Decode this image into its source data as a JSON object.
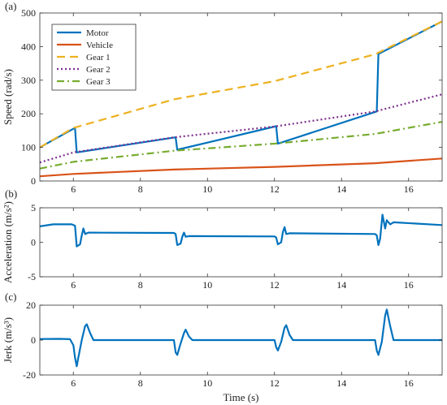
{
  "chart_data": [
    {
      "type": "line",
      "panel_label": "(a)",
      "xlabel": "",
      "ylabel": "Speed (rad/s)",
      "xlim": [
        5,
        17
      ],
      "ylim": [
        0,
        500
      ],
      "xticks": [
        6,
        8,
        10,
        12,
        14,
        16
      ],
      "yticks": [
        0,
        100,
        200,
        300,
        400,
        500
      ],
      "legend_position": "top-left",
      "series": [
        {
          "name": "Motor",
          "color": "#0072BD",
          "dash": "solid",
          "points": [
            [
              5.0,
              100
            ],
            [
              6.05,
              158
            ],
            [
              6.1,
              85
            ],
            [
              9.05,
              130
            ],
            [
              9.1,
              93
            ],
            [
              12.05,
              163
            ],
            [
              12.1,
              111
            ],
            [
              15.05,
              207
            ],
            [
              15.1,
              378
            ],
            [
              17.0,
              475
            ]
          ]
        },
        {
          "name": "Vehicle",
          "color": "#D95319",
          "dash": "solid",
          "points": [
            [
              5.0,
              14
            ],
            [
              6.0,
              21
            ],
            [
              9.0,
              34
            ],
            [
              12.0,
              42
            ],
            [
              15.0,
              53
            ],
            [
              17.0,
              67
            ]
          ]
        },
        {
          "name": "Gear 1",
          "color": "#EDB120",
          "dash": "dashed",
          "points": [
            [
              5.0,
              100
            ],
            [
              6.0,
              158
            ],
            [
              9.0,
              243
            ],
            [
              12.0,
              297
            ],
            [
              15.0,
              377
            ],
            [
              17.0,
              475
            ]
          ]
        },
        {
          "name": "Gear 2",
          "color": "#7E2F8E",
          "dash": "dotted",
          "points": [
            [
              5.0,
              55
            ],
            [
              6.0,
              85
            ],
            [
              9.0,
              130
            ],
            [
              12.0,
              162
            ],
            [
              15.0,
              207
            ],
            [
              17.0,
              258
            ]
          ]
        },
        {
          "name": "Gear 3",
          "color": "#77AC30",
          "dash": "dashdot",
          "points": [
            [
              5.0,
              37
            ],
            [
              6.0,
              57
            ],
            [
              9.0,
              90
            ],
            [
              12.0,
              111
            ],
            [
              15.0,
              140
            ],
            [
              17.0,
              176
            ]
          ]
        }
      ]
    },
    {
      "type": "line",
      "panel_label": "(b)",
      "xlabel": "",
      "ylabel": "Acceleration (m/s²)",
      "xlim": [
        5,
        17
      ],
      "ylim": [
        -5,
        5
      ],
      "xticks": [
        6,
        8,
        10,
        12,
        14,
        16
      ],
      "yticks": [
        -5,
        0,
        5
      ],
      "series": [
        {
          "name": "",
          "color": "#0072BD",
          "dash": "solid",
          "points": [
            [
              5.0,
              2.3
            ],
            [
              5.4,
              2.6
            ],
            [
              5.95,
              2.6
            ],
            [
              6.05,
              2.4
            ],
            [
              6.1,
              -0.6
            ],
            [
              6.2,
              -0.3
            ],
            [
              6.25,
              1.0
            ],
            [
              6.3,
              2.0
            ],
            [
              6.35,
              1.2
            ],
            [
              6.45,
              1.4
            ],
            [
              9.0,
              1.35
            ],
            [
              9.05,
              1.2
            ],
            [
              9.1,
              -0.4
            ],
            [
              9.2,
              -0.2
            ],
            [
              9.25,
              0.8
            ],
            [
              9.3,
              1.4
            ],
            [
              9.35,
              0.8
            ],
            [
              9.45,
              0.9
            ],
            [
              12.0,
              0.85
            ],
            [
              12.05,
              0.7
            ],
            [
              12.1,
              -0.3
            ],
            [
              12.2,
              0.0
            ],
            [
              12.25,
              1.5
            ],
            [
              12.3,
              2.2
            ],
            [
              12.35,
              1.2
            ],
            [
              12.45,
              1.3
            ],
            [
              15.0,
              1.2
            ],
            [
              15.05,
              1.0
            ],
            [
              15.1,
              -0.4
            ],
            [
              15.15,
              0.5
            ],
            [
              15.22,
              4.0
            ],
            [
              15.3,
              2.0
            ],
            [
              15.35,
              3.2
            ],
            [
              15.45,
              2.6
            ],
            [
              15.55,
              2.9
            ],
            [
              17.0,
              2.5
            ]
          ]
        }
      ]
    },
    {
      "type": "line",
      "panel_label": "(c)",
      "xlabel": "Time (s)",
      "ylabel": "Jerk (m/s³)",
      "xlim": [
        5,
        17
      ],
      "ylim": [
        -20,
        20
      ],
      "xticks": [
        6,
        8,
        10,
        12,
        14,
        16
      ],
      "yticks": [
        -20,
        0,
        20
      ],
      "series": [
        {
          "name": "",
          "color": "#0072BD",
          "dash": "solid",
          "points": [
            [
              5.0,
              0.6
            ],
            [
              5.6,
              0.7
            ],
            [
              5.9,
              0.5
            ],
            [
              6.0,
              -3
            ],
            [
              6.05,
              -10
            ],
            [
              6.1,
              -15
            ],
            [
              6.15,
              -10
            ],
            [
              6.25,
              0
            ],
            [
              6.35,
              8
            ],
            [
              6.4,
              9
            ],
            [
              6.5,
              4
            ],
            [
              6.6,
              0
            ],
            [
              9.0,
              0
            ],
            [
              9.05,
              -7
            ],
            [
              9.1,
              -8.5
            ],
            [
              9.2,
              -2
            ],
            [
              9.3,
              4
            ],
            [
              9.35,
              6
            ],
            [
              9.45,
              2
            ],
            [
              9.55,
              0
            ],
            [
              12.0,
              0
            ],
            [
              12.05,
              -4
            ],
            [
              12.1,
              -6
            ],
            [
              12.2,
              -1
            ],
            [
              12.3,
              7
            ],
            [
              12.35,
              8.5
            ],
            [
              12.45,
              3
            ],
            [
              12.55,
              0
            ],
            [
              15.0,
              0
            ],
            [
              15.05,
              -6
            ],
            [
              15.1,
              -8.5
            ],
            [
              15.2,
              -1
            ],
            [
              15.3,
              14
            ],
            [
              15.35,
              17.5
            ],
            [
              15.45,
              8
            ],
            [
              15.55,
              0
            ],
            [
              17.0,
              0
            ]
          ]
        }
      ]
    }
  ]
}
